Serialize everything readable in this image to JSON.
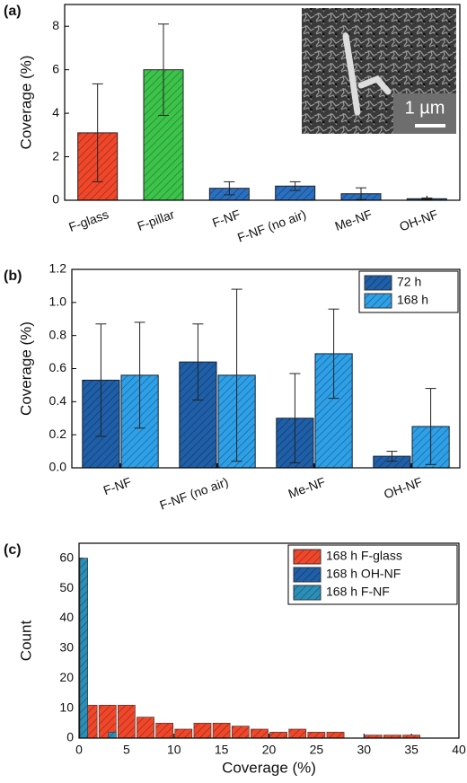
{
  "chart_data": [
    {
      "type": "bar",
      "label": "(a)",
      "ylabel": "Coverage (%)",
      "categories": [
        "F-glass",
        "F-pillar",
        "F-NF",
        "F-NF (no air)",
        "Me-NF",
        "OH-NF"
      ],
      "values": [
        3.1,
        6.0,
        0.55,
        0.65,
        0.3,
        0.07
      ],
      "errors": [
        2.25,
        2.1,
        0.3,
        0.2,
        0.27,
        0.03
      ],
      "colors": [
        "#f0472a",
        "#3cc44a",
        "#2a6fc0",
        "#2a6fc0",
        "#2a6fc0",
        "#2a6fc0"
      ],
      "ylim": [
        0,
        9
      ],
      "yticks": [
        0,
        2,
        4,
        6,
        8
      ],
      "inset_label": "1 µm"
    },
    {
      "type": "bar",
      "label": "(b)",
      "ylabel": "Coverage (%)",
      "categories": [
        "F-NF",
        "F-NF (no air)",
        "Me-NF",
        "OH-NF"
      ],
      "series": [
        {
          "name": "72 h",
          "color": "#1f5fa8",
          "values": [
            0.53,
            0.64,
            0.3,
            0.07
          ],
          "errors": [
            0.34,
            0.23,
            0.27,
            0.03
          ]
        },
        {
          "name": "168 h",
          "color": "#2ea0e8",
          "values": [
            0.56,
            0.56,
            0.69,
            0.25
          ],
          "errors": [
            0.32,
            0.52,
            0.27,
            0.23
          ]
        }
      ],
      "ylim": [
        0,
        1.2
      ],
      "yticks": [
        {
          "value": 0,
          "label": "0.0"
        },
        0.2,
        0.4,
        0.6,
        0.8,
        {
          "value": 1,
          "label": "1.0"
        },
        1.2
      ],
      "legend": "upper right"
    },
    {
      "type": "histogram",
      "label": "(c)",
      "xlabel": "Coverage (%)",
      "ylabel": "Count",
      "series": [
        {
          "name": "168 h  F-glass",
          "color": "#f0472a",
          "bins": [
            0,
            2,
            4,
            6,
            8,
            10,
            12,
            14,
            16,
            18,
            20,
            22,
            24,
            26,
            28,
            30,
            32,
            34,
            36
          ],
          "values": [
            11,
            11,
            11,
            7,
            5,
            3,
            5,
            5,
            4,
            3,
            2,
            3,
            2,
            2,
            0,
            1,
            1,
            1
          ]
        },
        {
          "name": "168 h  OH-NF",
          "color": "#1f5fa8",
          "bins": [
            0,
            1
          ],
          "values": [
            60
          ]
        },
        {
          "name": "168 h  F-NF",
          "color": "#2a8fb8",
          "bins": [
            0,
            1,
            2,
            3,
            4
          ],
          "values": [
            60,
            0,
            0,
            2
          ]
        }
      ],
      "xlim": [
        0,
        40
      ],
      "xticks": [
        0,
        5,
        10,
        15,
        20,
        25,
        30,
        35,
        40
      ],
      "ylim": [
        0,
        65
      ],
      "yticks": [
        0,
        10,
        20,
        30,
        40,
        50,
        60
      ],
      "legend": "upper right"
    }
  ]
}
